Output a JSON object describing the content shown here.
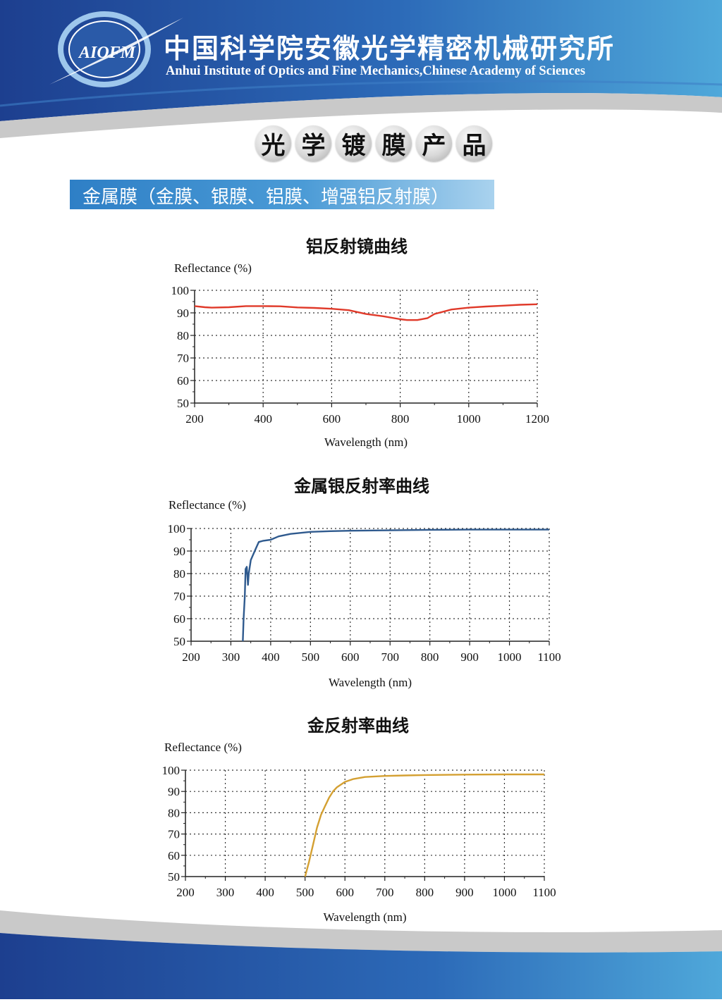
{
  "header": {
    "logo_text": "AIOFM",
    "institute_cn": "中国科学院安徽光学精密机械研究所",
    "institute_en": "Anhui Institute of Optics and Fine Mechanics,Chinese Academy of Sciences"
  },
  "page_title_chars": [
    "光",
    "学",
    "镀",
    "膜",
    "产",
    "品"
  ],
  "section_label": "金属膜（金膜、银膜、铝膜、增强铝反射膜）",
  "colors": {
    "header_blue": "#2a5aa8",
    "aluminum": "#e03a2a",
    "silver": "#2f5a8e",
    "gold": "#d4a032"
  },
  "chart_data": [
    {
      "type": "line",
      "title": "铝反射镜曲线",
      "ylabel": "Reflectance (%)",
      "xlabel": "Wavelength (nm)",
      "xlim": [
        200,
        1200
      ],
      "ylim": [
        50,
        100
      ],
      "xticks": [
        "200",
        "400",
        "600",
        "800",
        "1000",
        "1200"
      ],
      "yticks": [
        "50",
        "60",
        "70",
        "80",
        "90",
        "100"
      ],
      "grid": true,
      "series": [
        {
          "color": "#e03a2a",
          "x": [
            200,
            230,
            250,
            300,
            350,
            400,
            450,
            500,
            550,
            600,
            650,
            700,
            750,
            800,
            820,
            850,
            880,
            900,
            950,
            1000,
            1050,
            1100,
            1150,
            1200
          ],
          "y": [
            93,
            92.5,
            92.3,
            92.5,
            93,
            93,
            92.9,
            92.4,
            92.2,
            91.8,
            91.2,
            89.5,
            88.5,
            87.2,
            86.8,
            86.8,
            87.7,
            89.5,
            91.5,
            92.3,
            92.8,
            93.2,
            93.6,
            93.8
          ]
        }
      ]
    },
    {
      "type": "line",
      "title": "金属银反射率曲线",
      "ylabel": "Reflectance (%)",
      "xlabel": "Wavelength (nm)",
      "xlim": [
        200,
        1100
      ],
      "ylim": [
        50,
        100
      ],
      "xticks": [
        "200",
        "300",
        "400",
        "500",
        "600",
        "700",
        "800",
        "900",
        "1000",
        "1100"
      ],
      "yticks": [
        "50",
        "60",
        "70",
        "80",
        "90",
        "100"
      ],
      "grid": true,
      "series": [
        {
          "color": "#2f5a8e",
          "x": [
            330,
            332,
            335,
            337,
            340,
            343,
            345,
            350,
            355,
            360,
            365,
            370,
            380,
            400,
            420,
            450,
            500,
            550,
            600,
            700,
            800,
            900,
            1000,
            1100
          ],
          "y": [
            50,
            60,
            70,
            82,
            83,
            75,
            80,
            86,
            88,
            90,
            92,
            94,
            94.5,
            95,
            96.5,
            97.6,
            98.5,
            98.8,
            99,
            99.2,
            99.4,
            99.5,
            99.5,
            99.5
          ]
        }
      ]
    },
    {
      "type": "line",
      "title": "金反射率曲线",
      "ylabel": "Reflectance (%)",
      "xlabel": "Wavelength (nm)",
      "xlim": [
        200,
        1100
      ],
      "ylim": [
        50,
        100
      ],
      "xticks": [
        "200",
        "300",
        "400",
        "500",
        "600",
        "700",
        "800",
        "900",
        "1000",
        "1100"
      ],
      "yticks": [
        "50",
        "60",
        "70",
        "80",
        "90",
        "100"
      ],
      "grid": true,
      "series": [
        {
          "color": "#d4a032",
          "x": [
            500,
            510,
            520,
            530,
            540,
            550,
            560,
            570,
            580,
            600,
            620,
            650,
            700,
            750,
            800,
            900,
            1000,
            1100
          ],
          "y": [
            50,
            57,
            65,
            73,
            79,
            83,
            87,
            90,
            92,
            94.5,
            95.8,
            96.8,
            97.3,
            97.5,
            97.7,
            97.9,
            98,
            98
          ]
        }
      ]
    }
  ]
}
